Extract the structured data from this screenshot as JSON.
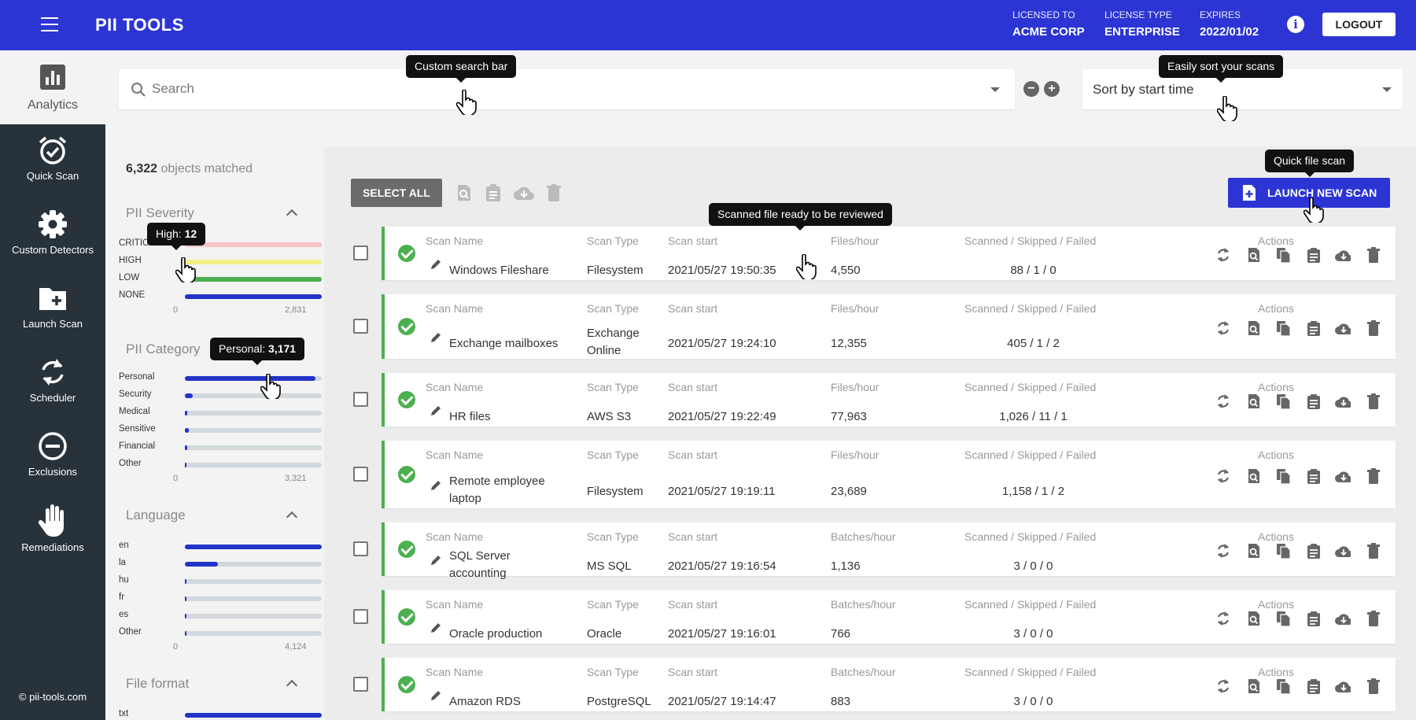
{
  "header": {
    "logo": "PII TOOLS",
    "licensed_to_label": "LICENSED TO",
    "licensed_to": "ACME CORP",
    "license_type_label": "LICENSE TYPE",
    "license_type": "ENTERPRISE",
    "expires_label": "EXPIRES",
    "expires": "2022/01/02",
    "logout": "LOGOUT"
  },
  "nav": {
    "items": [
      {
        "label": "Analytics",
        "icon": "bar-chart-icon",
        "active": true
      },
      {
        "label": "Quick Scan",
        "icon": "alarm-check-icon"
      },
      {
        "label": "Custom Detectors",
        "icon": "gear-icon"
      },
      {
        "label": "Launch Scan",
        "icon": "folder-plus-icon"
      },
      {
        "label": "Scheduler",
        "icon": "sync-icon"
      },
      {
        "label": "Exclusions",
        "icon": "minus-circle-icon"
      },
      {
        "label": "Remediations",
        "icon": "hand-icon"
      }
    ],
    "copyright": "© pii-tools.com"
  },
  "search": {
    "placeholder": "Search",
    "sort_label": "Sort by start time"
  },
  "tooltips": {
    "search": "Custom search bar",
    "sort": "Easily sort your scans",
    "quick": "Quick file scan",
    "reviewed": "Scanned file ready to be reviewed",
    "high_label": "High: ",
    "high_value": "12",
    "personal_label": "Personal: ",
    "personal_value": "3,171"
  },
  "stats": {
    "matched_count": "6,322",
    "matched_text": " objects matched",
    "severity": {
      "title": "PII Severity",
      "axis_min": "0",
      "axis_max": "2,831",
      "items": [
        {
          "label": "CRITICAL",
          "fraction": 1.0,
          "color": "#f8c4c4"
        },
        {
          "label": "HIGH",
          "fraction": 1.0,
          "color": "#f5ee84"
        },
        {
          "label": "LOW",
          "fraction": 1.0,
          "color": "#4caf50"
        },
        {
          "label": "NONE",
          "fraction": 1.0,
          "color": "#2233c8"
        }
      ]
    },
    "category": {
      "title": "PII Category",
      "axis_min": "0",
      "axis_max": "3,321",
      "items": [
        {
          "label": "Personal",
          "fraction": 0.955
        },
        {
          "label": "Security",
          "fraction": 0.06
        },
        {
          "label": "Medical",
          "fraction": 0.02
        },
        {
          "label": "Sensitive",
          "fraction": 0.03
        },
        {
          "label": "Financial",
          "fraction": 0.015
        },
        {
          "label": "Other",
          "fraction": 0.01
        }
      ]
    },
    "language": {
      "title": "Language",
      "axis_min": "0",
      "axis_max": "4,124",
      "items": [
        {
          "label": "en",
          "fraction": 1.0
        },
        {
          "label": "la",
          "fraction": 0.24
        },
        {
          "label": "hu",
          "fraction": 0.01
        },
        {
          "label": "fr",
          "fraction": 0.01
        },
        {
          "label": "es",
          "fraction": 0.01
        },
        {
          "label": "Other",
          "fraction": 0.01
        }
      ]
    },
    "format": {
      "title": "File format",
      "items": [
        {
          "label": "txt",
          "fraction": 1.0
        }
      ]
    }
  },
  "toolbar": {
    "select_all": "SELECT ALL",
    "launch": "LAUNCH NEW SCAN"
  },
  "columns": {
    "name": "Scan Name",
    "type": "Scan Type",
    "start": "Scan start",
    "rate_files": "Files/hour",
    "rate_batches": "Batches/hour",
    "counts": "Scanned / Skipped / Failed",
    "actions": "Actions"
  },
  "scans": [
    {
      "name": "Windows Fileshare",
      "type": "Filesystem",
      "start": "2021/05/27 19:50:35",
      "rate_label": "Files/hour",
      "rate": "4,550",
      "counts": "88 / 1 / 0"
    },
    {
      "name": "Exchange mailboxes",
      "type": "Exchange Online",
      "start": "2021/05/27 19:24:10",
      "rate_label": "Files/hour",
      "rate": "12,355",
      "counts": "405 / 1 / 2"
    },
    {
      "name": "HR files",
      "type": "AWS S3",
      "start": "2021/05/27 19:22:49",
      "rate_label": "Files/hour",
      "rate": "77,963",
      "counts": "1,026 / 11 / 1"
    },
    {
      "name": "Remote employee laptop",
      "type": "Filesystem",
      "start": "2021/05/27 19:19:11",
      "rate_label": "Files/hour",
      "rate": "23,689",
      "counts": "1,158 / 1 / 2"
    },
    {
      "name": "SQL Server accounting",
      "type": "MS SQL",
      "start": "2021/05/27 19:16:54",
      "rate_label": "Batches/hour",
      "rate": "1,136",
      "counts": "3 / 0 / 0"
    },
    {
      "name": "Oracle production",
      "type": "Oracle",
      "start": "2021/05/27 19:16:01",
      "rate_label": "Batches/hour",
      "rate": "766",
      "counts": "3 / 0 / 0"
    },
    {
      "name": "Amazon RDS",
      "type": "PostgreSQL",
      "start": "2021/05/27 19:14:47",
      "rate_label": "Batches/hour",
      "rate": "883",
      "counts": "3 / 0 / 0"
    }
  ],
  "colors": {
    "brand": "#2c35d4",
    "sidebar": "#28323a",
    "success": "#4caf50",
    "bar_blue": "#2233c8"
  }
}
